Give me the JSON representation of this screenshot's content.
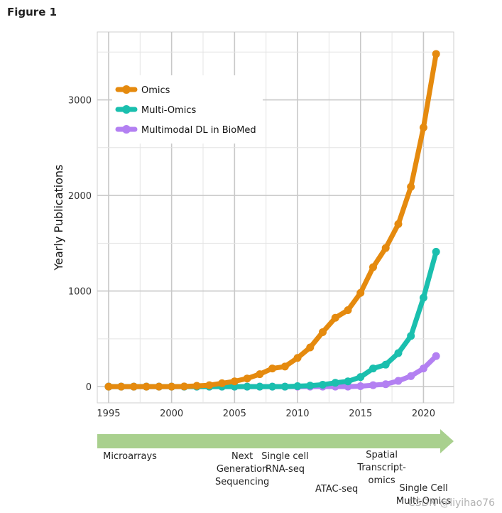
{
  "figure_label": "Figure 1",
  "watermark": "CSDN @liyihao76",
  "colors": {
    "Omics": "#E58A0E",
    "Multi-Omics": "#1ABFAE",
    "Multimodal DL in BioMed": "#B380F2",
    "arrow": "#A9D08E"
  },
  "chart_data": {
    "type": "line",
    "title": "",
    "xlabel": "",
    "ylabel": "Yearly Publications",
    "xlim": [
      1994.1,
      2022.4
    ],
    "ylim": [
      -170,
      3710
    ],
    "xticks": [
      1995,
      2000,
      2005,
      2010,
      2015,
      2020
    ],
    "yticks": [
      0,
      1000,
      2000,
      3000
    ],
    "grid": true,
    "legend_position": "top-left",
    "x": [
      1995,
      1996,
      1997,
      1998,
      1999,
      2000,
      2001,
      2002,
      2003,
      2004,
      2005,
      2006,
      2007,
      2008,
      2009,
      2010,
      2011,
      2012,
      2013,
      2014,
      2015,
      2016,
      2017,
      2018,
      2019,
      2020,
      2021
    ],
    "series": [
      {
        "name": "Omics",
        "values": [
          0,
          0,
          0,
          0,
          0,
          0,
          2,
          8,
          15,
          35,
          55,
          85,
          130,
          190,
          210,
          300,
          410,
          570,
          720,
          800,
          980,
          1250,
          1450,
          1700,
          2090,
          2710,
          3480
        ]
      },
      {
        "name": "Multi-Omics",
        "values": [
          0,
          0,
          0,
          0,
          0,
          0,
          0,
          0,
          0,
          0,
          0,
          0,
          0,
          0,
          0,
          5,
          10,
          20,
          40,
          55,
          100,
          190,
          230,
          350,
          530,
          930,
          1410
        ]
      },
      {
        "name": "Multimodal DL in BioMed",
        "values": [
          0,
          0,
          0,
          0,
          0,
          0,
          0,
          0,
          0,
          0,
          0,
          0,
          0,
          0,
          0,
          0,
          0,
          0,
          0,
          0,
          5,
          15,
          25,
          60,
          110,
          190,
          320
        ]
      }
    ]
  },
  "timeline": {
    "milestones": [
      {
        "year": 1996.7,
        "label": "Microarrays"
      },
      {
        "year": 2005.6,
        "label": "Next\nGeneration\nSequencing"
      },
      {
        "year": 2009.0,
        "label": "Single cell\nRNA-seq"
      },
      {
        "year": 2013.1,
        "label": "ATAC-seq"
      },
      {
        "year": 2016.7,
        "label": "Spatial\nTranscript-\nomics"
      },
      {
        "year": 2020.0,
        "label": "Single Cell\nMulti-Omics"
      }
    ]
  }
}
